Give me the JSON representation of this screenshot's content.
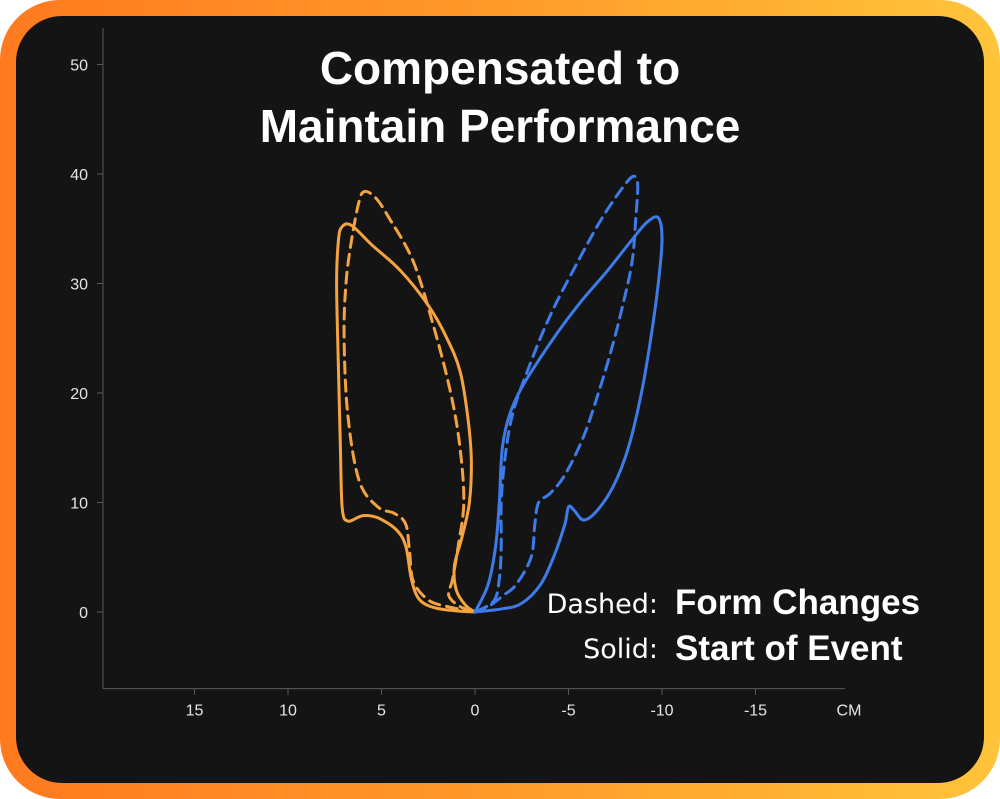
{
  "colors": {
    "frame_start": "#ff7a1f",
    "frame_end": "#ffc43a",
    "background": "#141414",
    "orange": "#f5a340",
    "blue": "#3d7be8"
  },
  "chart_data": {
    "type": "line",
    "title_line1": "Compensated to",
    "title_line2": "Maintain Performance",
    "xlabel": "CM",
    "ylabel": "",
    "xlim": [
      20,
      -20
    ],
    "ylim": [
      -7,
      52
    ],
    "x_axis_reversed": true,
    "x_ticks": [
      {
        "value": 15,
        "label": "15"
      },
      {
        "value": 10,
        "label": "10"
      },
      {
        "value": 5,
        "label": "5"
      },
      {
        "value": 0,
        "label": "0"
      },
      {
        "value": -5,
        "label": "-5"
      },
      {
        "value": -10,
        "label": "-10"
      },
      {
        "value": -15,
        "label": "-15"
      }
    ],
    "y_ticks": [
      {
        "value": 50,
        "label": "50"
      },
      {
        "value": 40,
        "label": "40"
      },
      {
        "value": 30,
        "label": "30"
      },
      {
        "value": 20,
        "label": "20"
      },
      {
        "value": 10,
        "label": "10"
      },
      {
        "value": 0,
        "label": "0"
      }
    ],
    "legend": {
      "dashed_key": "Dashed:",
      "dashed_label": "Form Changes",
      "solid_key": "Solid:",
      "solid_label": "Start of Event"
    },
    "series": [
      {
        "color": "#f5a340",
        "style": "solid",
        "points": [
          [
            0,
            0
          ],
          [
            1,
            0.1
          ],
          [
            2.2,
            0.4
          ],
          [
            3,
            1.2
          ],
          [
            3.4,
            3
          ],
          [
            3.7,
            6
          ],
          [
            4.2,
            7.5
          ],
          [
            5.2,
            8.6
          ],
          [
            6,
            8.8
          ],
          [
            6.8,
            8.3
          ],
          [
            7.1,
            9.5
          ],
          [
            7.2,
            15
          ],
          [
            7.3,
            22
          ],
          [
            7.4,
            30
          ],
          [
            7.3,
            34
          ],
          [
            7.1,
            35.2
          ],
          [
            6.6,
            35.3
          ],
          [
            5.5,
            33.5
          ],
          [
            4,
            31.2
          ],
          [
            2.5,
            28
          ],
          [
            1.5,
            25
          ],
          [
            0.8,
            22
          ],
          [
            0.4,
            18
          ],
          [
            0.2,
            14
          ],
          [
            0.3,
            10
          ],
          [
            0.7,
            6.8
          ],
          [
            1.1,
            4.2
          ],
          [
            1,
            2
          ],
          [
            0.5,
            0.6
          ],
          [
            0,
            0
          ]
        ]
      },
      {
        "color": "#f5a340",
        "style": "dashed",
        "points": [
          [
            0,
            0
          ],
          [
            1.5,
            0.5
          ],
          [
            2.5,
            1.1
          ],
          [
            3.3,
            2.8
          ],
          [
            3.5,
            5.5
          ],
          [
            3.7,
            8
          ],
          [
            4.3,
            9
          ],
          [
            5.2,
            9.6
          ],
          [
            6.2,
            12
          ],
          [
            6.8,
            18
          ],
          [
            7.0,
            25
          ],
          [
            6.9,
            30
          ],
          [
            6.6,
            34
          ],
          [
            6.2,
            37.5
          ],
          [
            5.9,
            38.4
          ],
          [
            5.3,
            37.8
          ],
          [
            4.6,
            36
          ],
          [
            3.3,
            32
          ],
          [
            2.2,
            26
          ],
          [
            1.3,
            20
          ],
          [
            0.8,
            15
          ],
          [
            0.6,
            10
          ],
          [
            0.9,
            6
          ],
          [
            1.2,
            3
          ],
          [
            1.4,
            1.5
          ],
          [
            0.8,
            0.5
          ],
          [
            0,
            0
          ]
        ]
      },
      {
        "color": "#3d7be8",
        "style": "solid",
        "points": [
          [
            0,
            0
          ],
          [
            -1.5,
            0.3
          ],
          [
            -2.5,
            0.8
          ],
          [
            -3.5,
            2.5
          ],
          [
            -4.2,
            5
          ],
          [
            -4.8,
            8
          ],
          [
            -5,
            9.6
          ],
          [
            -5.3,
            9.3
          ],
          [
            -5.8,
            8.4
          ],
          [
            -6.5,
            9.2
          ],
          [
            -7.4,
            11.5
          ],
          [
            -8.2,
            15
          ],
          [
            -8.9,
            20
          ],
          [
            -9.4,
            25
          ],
          [
            -9.8,
            30
          ],
          [
            -10,
            34
          ],
          [
            -9.8,
            36
          ],
          [
            -9.2,
            35.6
          ],
          [
            -8.4,
            34
          ],
          [
            -7,
            31
          ],
          [
            -5.5,
            28
          ],
          [
            -3.8,
            24
          ],
          [
            -2.2,
            19.5
          ],
          [
            -1.5,
            15.5
          ],
          [
            -1.3,
            10
          ],
          [
            -1.1,
            6
          ],
          [
            -0.7,
            2.5
          ],
          [
            0,
            0
          ]
        ]
      },
      {
        "color": "#3d7be8",
        "style": "dashed",
        "points": [
          [
            0,
            0
          ],
          [
            -0.8,
            0.6
          ],
          [
            -1.5,
            1.5
          ],
          [
            -2.2,
            2.5
          ],
          [
            -3,
            5
          ],
          [
            -3.2,
            8
          ],
          [
            -3.4,
            10
          ],
          [
            -4,
            10.8
          ],
          [
            -4.8,
            12.5
          ],
          [
            -5.8,
            16
          ],
          [
            -6.6,
            20
          ],
          [
            -7.3,
            24
          ],
          [
            -7.9,
            28
          ],
          [
            -8.4,
            32
          ],
          [
            -8.6,
            36
          ],
          [
            -8.7,
            39
          ],
          [
            -8.5,
            39.8
          ],
          [
            -8,
            39
          ],
          [
            -6.8,
            36
          ],
          [
            -5.5,
            32
          ],
          [
            -4,
            27
          ],
          [
            -2.8,
            22
          ],
          [
            -2,
            18
          ],
          [
            -1.6,
            14
          ],
          [
            -1.4,
            10
          ],
          [
            -1.4,
            6
          ],
          [
            -1.3,
            3
          ],
          [
            -1,
            1
          ],
          [
            0,
            0
          ]
        ]
      }
    ]
  }
}
